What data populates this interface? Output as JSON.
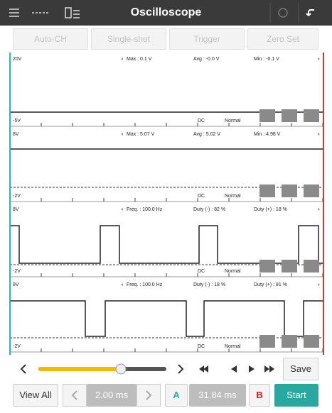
{
  "header": {
    "title": "Oscilloscope"
  },
  "toolbar": [
    "Auto-CH",
    "Single-shot",
    "Trigger",
    "Zero Set"
  ],
  "channels": [
    {
      "top": "20V",
      "bottom": "-5V",
      "stats": [
        "Max : 0.1 V",
        "Avg : -0.0 V",
        "Min : -0.1 V"
      ],
      "coupling": "DC",
      "mode": "Normal"
    },
    {
      "top": "8V",
      "bottom": "-2V",
      "stats": [
        "Max : 5.07 V",
        "Avg : 5.02 V",
        "Min : 4.98 V"
      ],
      "coupling": "DC",
      "mode": "Normal"
    },
    {
      "top": "8V",
      "bottom": "-2V",
      "stats": [
        "Freq. : 100.0 Hz",
        "Duty (-) : 82 %",
        "Duty (+) : 18 %"
      ],
      "coupling": "DC",
      "mode": "Normal"
    },
    {
      "top": "8V",
      "bottom": "-2V",
      "stats": [
        "Freq. : 100.0 Hz",
        "Duty (-) : 18 %",
        "Duty (+) : 81 %"
      ],
      "coupling": "DC",
      "mode": "Normal"
    }
  ],
  "controls": {
    "save": "Save",
    "view_all": "View All",
    "time_div": "2.00 ms",
    "marker_a": "A",
    "delta": "31.84 ms",
    "marker_b": "B",
    "start": "Start"
  }
}
